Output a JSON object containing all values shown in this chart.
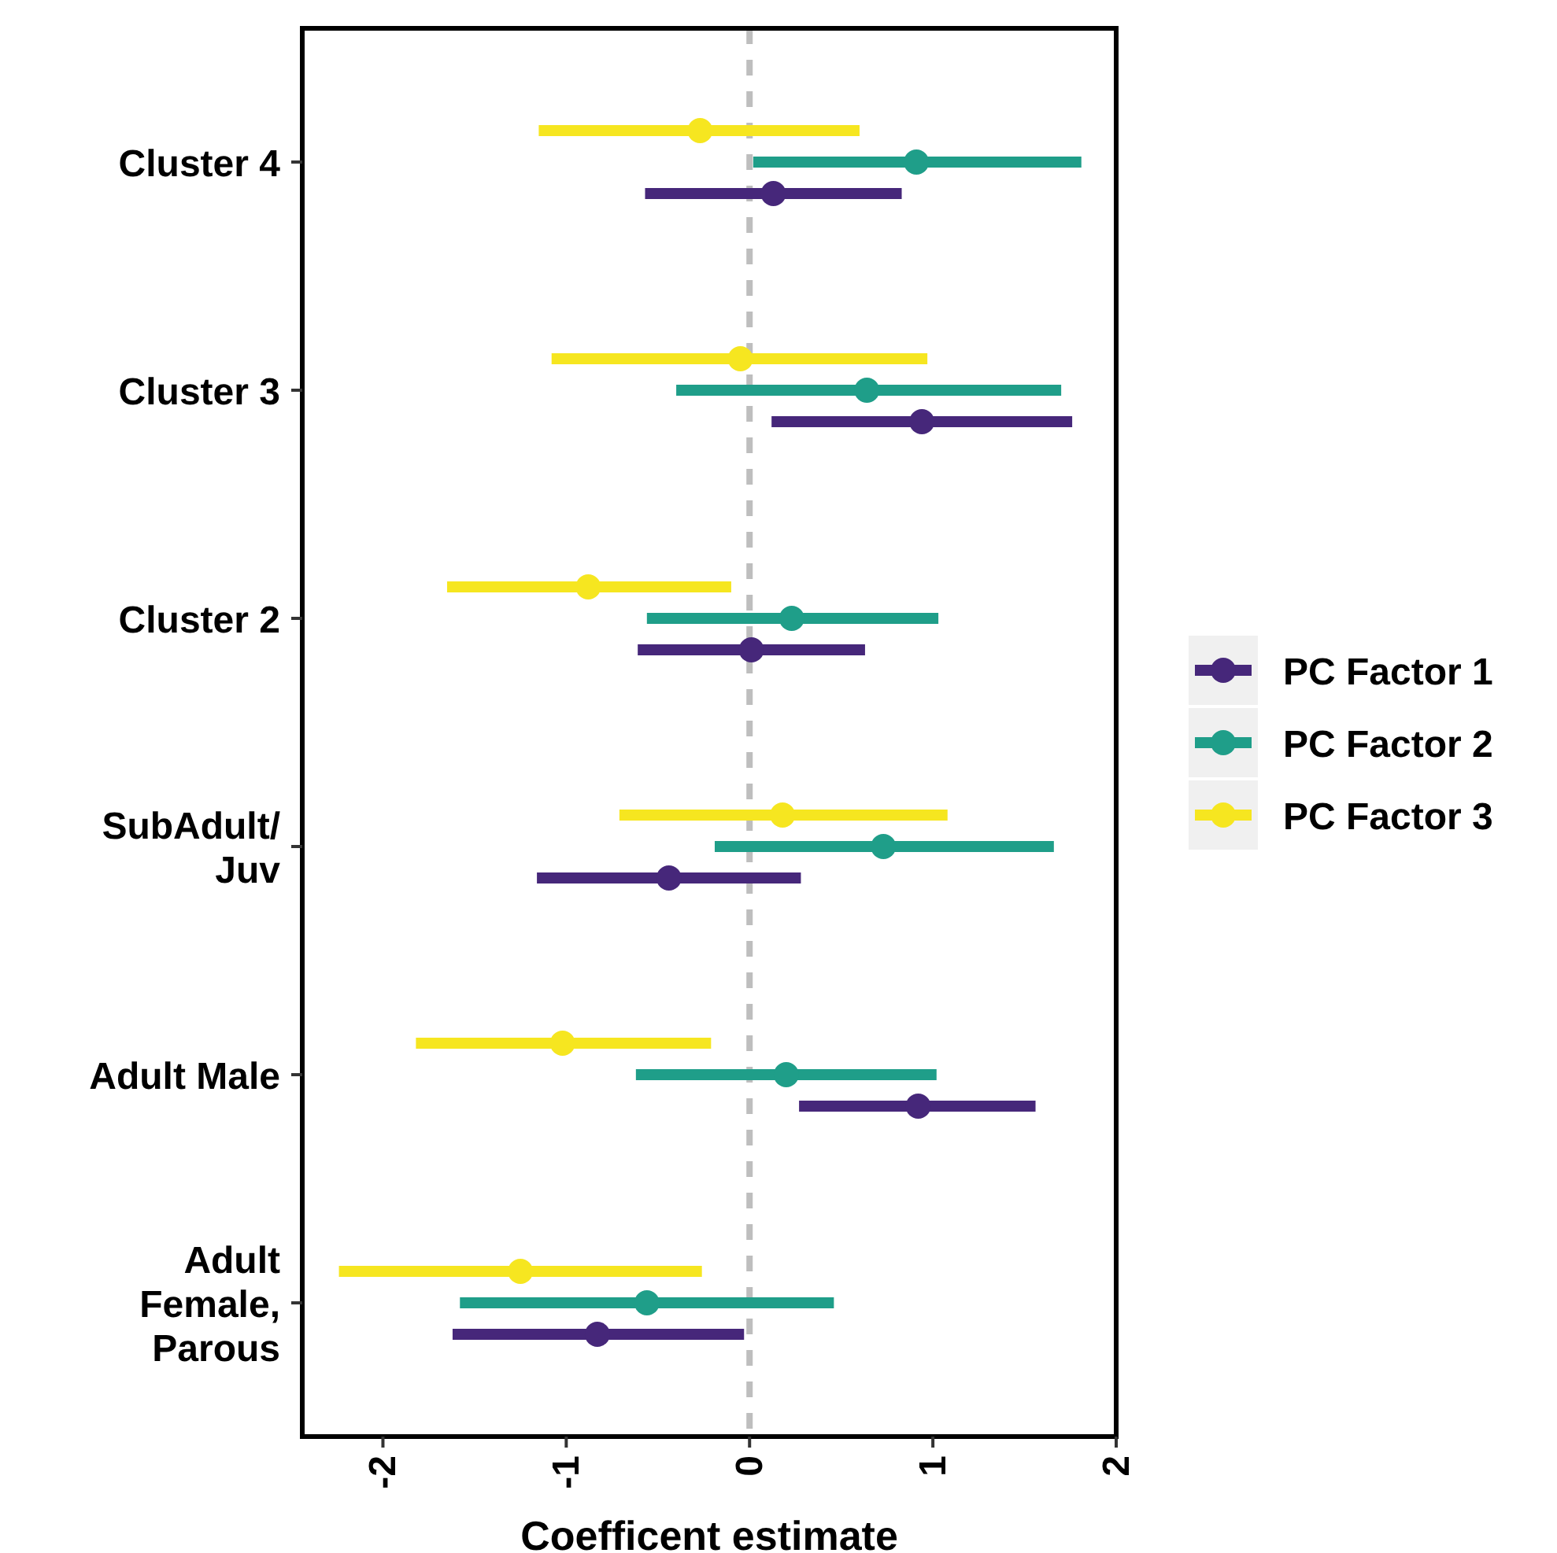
{
  "chart_data": {
    "type": "scatter",
    "orientation": "horizontal",
    "xlabel": "Coefficent estimate",
    "categories": [
      "Cluster 4",
      "Cluster 3",
      "Cluster 2",
      "SubAdult/\nJuv",
      "Adult Male",
      "Adult\nFemale,\nParous"
    ],
    "xlim": [
      -2.44,
      2.0
    ],
    "xticks": [
      -2,
      -1,
      0,
      1,
      2
    ],
    "grid": false,
    "legend": "right",
    "marker": "circle",
    "ref_lines": [
      {
        "axis": "x",
        "value": 0,
        "color": "#bebebe",
        "line_style": "dashed"
      }
    ],
    "series": [
      {
        "name": "PC Factor 1",
        "color": "#46277a",
        "values": [
          0.13,
          0.94,
          0.01,
          -0.44,
          0.92,
          -0.83
        ],
        "errors": [
          [
            -0.57,
            0.83
          ],
          [
            0.12,
            1.76
          ],
          [
            -0.61,
            0.63
          ],
          [
            -1.16,
            0.28
          ],
          [
            0.27,
            1.56
          ],
          [
            -1.62,
            -0.03
          ]
        ]
      },
      {
        "name": "PC Factor 2",
        "color": "#1f9e89",
        "values": [
          0.91,
          0.64,
          0.23,
          0.73,
          0.2,
          -0.56
        ],
        "errors": [
          [
            0.02,
            1.81
          ],
          [
            -0.4,
            1.7
          ],
          [
            -0.56,
            1.03
          ],
          [
            -0.19,
            1.66
          ],
          [
            -0.62,
            1.02
          ],
          [
            -1.58,
            0.46
          ]
        ]
      },
      {
        "name": "PC Factor 3",
        "color": "#f6e620",
        "values": [
          -0.27,
          -0.05,
          -0.88,
          0.18,
          -1.02,
          -1.25
        ],
        "errors": [
          [
            -1.15,
            0.6
          ],
          [
            -1.08,
            0.97
          ],
          [
            -1.65,
            -0.1
          ],
          [
            -0.71,
            1.08
          ],
          [
            -1.82,
            -0.21
          ],
          [
            -2.24,
            -0.26
          ]
        ]
      }
    ]
  }
}
